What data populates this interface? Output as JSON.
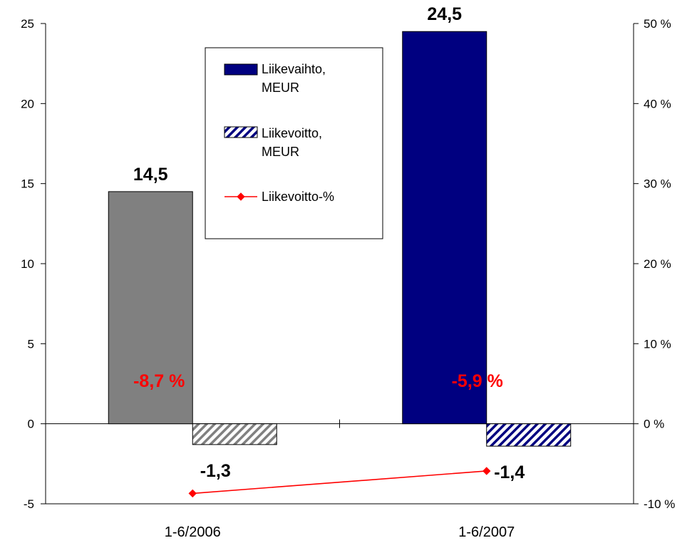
{
  "chart_data": {
    "type": "bar",
    "categories": [
      "1-6/2006",
      "1-6/2007"
    ],
    "series": [
      {
        "name": "Liikevaihto, MEUR",
        "axis": "left",
        "values": [
          14.5,
          24.5
        ],
        "labels": [
          "14,5",
          "24,5"
        ],
        "colors": [
          "#808080",
          "#000080"
        ],
        "label_color": "#000000"
      },
      {
        "name": "Liikevoitto, MEUR",
        "axis": "left",
        "values": [
          -1.3,
          -1.4
        ],
        "labels": [
          "-1,3",
          "-1,4"
        ],
        "hatch_colors": [
          "#808080",
          "#000080"
        ],
        "label_color": "#000000"
      },
      {
        "name": "Liikevoitto-%",
        "type": "line",
        "axis": "right",
        "values": [
          -8.7,
          -5.9
        ],
        "labels": [
          "-8,7 %",
          "-5,9 %"
        ],
        "color": "#ff0000",
        "label_color": "#ff0000"
      }
    ],
    "ylim": [
      -5,
      25
    ],
    "yticks": [
      -5,
      0,
      5,
      10,
      15,
      20,
      25
    ],
    "ytick_labels": [
      "-5",
      "0",
      "5",
      "10",
      "15",
      "20",
      "25"
    ],
    "y2lim": [
      -10,
      50
    ],
    "y2ticks": [
      -10,
      0,
      10,
      20,
      30,
      40,
      50
    ],
    "y2tick_labels": [
      "-10 %",
      "0 %",
      "10 %",
      "20 %",
      "30 %",
      "40 %",
      "50 %"
    ],
    "legend": {
      "placement": "top-center",
      "entries": [
        [
          "Liikevaihto,",
          "MEUR"
        ],
        [
          "Liikevoitto,",
          "MEUR"
        ],
        [
          "Liikevoitto-%"
        ]
      ]
    },
    "grid": false
  }
}
